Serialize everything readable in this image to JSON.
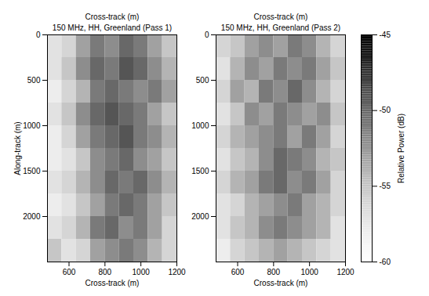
{
  "chart_data": [
    {
      "type": "heatmap",
      "title": "150 MHz, HH, Greenland (Pass 1)",
      "top_label": "Cross-track (m)",
      "xlabel": "Cross-track (m)",
      "ylabel": "Along-track (m)",
      "xlim": [
        480,
        1200
      ],
      "xticks": [
        600,
        800,
        1000,
        1200
      ],
      "ylim": [
        0,
        2500
      ],
      "yticks": [
        0,
        500,
        1000,
        1500,
        2000
      ],
      "x_bins": [
        480,
        560,
        640,
        720,
        800,
        880,
        960,
        1040,
        1120,
        1200
      ],
      "y_bins": [
        0,
        250,
        500,
        750,
        1000,
        1250,
        1500,
        1750,
        2000,
        2250,
        2500
      ],
      "cells": [
        [
          -57,
          -56,
          -53,
          -51,
          -52,
          -50,
          -51,
          -53,
          -55
        ],
        [
          -57,
          -55,
          -52,
          -50,
          -51,
          -49,
          -50,
          -52,
          -54
        ],
        [
          -58,
          -56,
          -54,
          -51,
          -50,
          -51,
          -52,
          -51,
          -53
        ],
        [
          -57,
          -55,
          -52,
          -50,
          -49,
          -50,
          -51,
          -53,
          -55
        ],
        [
          -58,
          -56,
          -53,
          -51,
          -50,
          -49,
          -51,
          -52,
          -54
        ],
        [
          -58,
          -57,
          -55,
          -52,
          -51,
          -50,
          -52,
          -53,
          -55
        ],
        [
          -57,
          -56,
          -54,
          -52,
          -50,
          -51,
          -50,
          -52,
          -54
        ],
        [
          -58,
          -57,
          -55,
          -53,
          -51,
          -50,
          -51,
          -53,
          -55
        ],
        [
          -57,
          -56,
          -54,
          -51,
          -50,
          -52,
          -51,
          -53,
          -56
        ],
        [
          -55,
          -57,
          -56,
          -53,
          -52,
          -51,
          -52,
          -54,
          -56
        ]
      ]
    },
    {
      "type": "heatmap",
      "title": "150 MHz, HH, Greenland (Pass 2)",
      "top_label": "Cross-track (m)",
      "xlabel": "Cross-track (m)",
      "xlim": [
        480,
        1200
      ],
      "xticks": [
        600,
        800,
        1000,
        1200
      ],
      "ylim": [
        0,
        2500
      ],
      "yticks": [
        0,
        500,
        1000,
        1500,
        2000
      ],
      "x_bins": [
        480,
        560,
        640,
        720,
        800,
        880,
        960,
        1040,
        1120,
        1200
      ],
      "y_bins": [
        0,
        250,
        500,
        750,
        1000,
        1250,
        1500,
        1750,
        2000,
        2250,
        2500
      ],
      "cells": [
        [
          -56,
          -55,
          -53,
          -52,
          -53,
          -51,
          -52,
          -54,
          -56
        ],
        [
          -57,
          -54,
          -52,
          -53,
          -51,
          -52,
          -51,
          -53,
          -55
        ],
        [
          -56,
          -53,
          -54,
          -51,
          -52,
          -50,
          -52,
          -54,
          -56
        ],
        [
          -57,
          -55,
          -52,
          -53,
          -51,
          -52,
          -53,
          -52,
          -55
        ],
        [
          -56,
          -54,
          -53,
          -52,
          -51,
          -53,
          -51,
          -53,
          -56
        ],
        [
          -57,
          -55,
          -54,
          -52,
          -50,
          -51,
          -52,
          -54,
          -55
        ],
        [
          -56,
          -54,
          -53,
          -51,
          -50,
          -52,
          -51,
          -53,
          -56
        ],
        [
          -57,
          -56,
          -54,
          -53,
          -52,
          -51,
          -53,
          -54,
          -56
        ],
        [
          -57,
          -55,
          -54,
          -52,
          -51,
          -52,
          -53,
          -54,
          -57
        ],
        [
          -58,
          -56,
          -55,
          -54,
          -53,
          -54,
          -55,
          -56,
          -57
        ]
      ],
      "colorbar": {
        "label": "Relative Power (dB)",
        "range": [
          -60,
          -45
        ],
        "ticks": [
          -45,
          -50,
          -55,
          -60
        ]
      }
    }
  ]
}
